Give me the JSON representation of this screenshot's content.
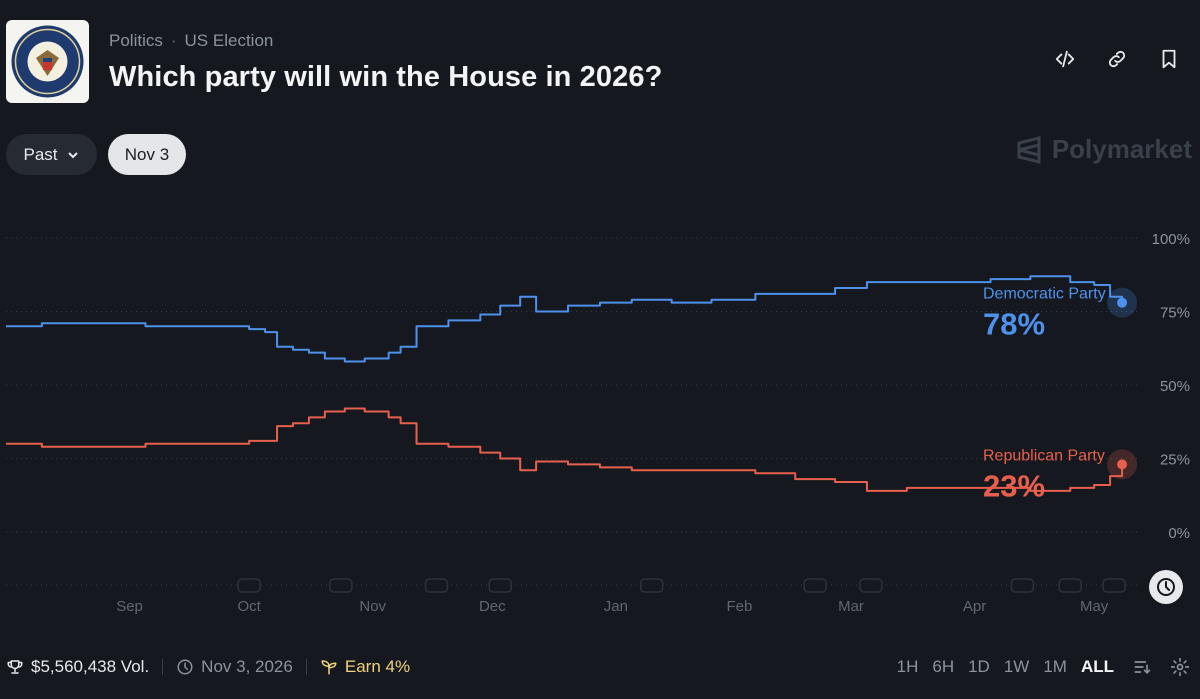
{
  "header": {
    "category": "Politics",
    "subcategory": "US Election",
    "title": "Which party will win the House in 2026?",
    "icons": [
      "embed-icon",
      "link-icon",
      "bookmark-icon"
    ]
  },
  "controls": {
    "past_label": "Past",
    "date_label": "Nov 3"
  },
  "brand": {
    "name": "Polymarket"
  },
  "chart_data": {
    "type": "line",
    "title": "",
    "xlabel": "",
    "ylabel": "",
    "ylim": [
      0,
      100
    ],
    "y_ticks": [
      0,
      25,
      50,
      75,
      100
    ],
    "y_tick_labels": [
      "0%",
      "25%",
      "50%",
      "75%",
      "100%"
    ],
    "x_tick_labels": [
      "Sep",
      "Oct",
      "Nov",
      "Dec",
      "Jan",
      "Feb",
      "Mar",
      "Apr",
      "May"
    ],
    "x_range": [
      "2025-08-01",
      "2026-05-12"
    ],
    "grid": true,
    "legend": "end-of-line labels",
    "series": [
      {
        "name": "Democratic Party",
        "color": "#4e91ec",
        "current_label": "78%",
        "x": [
          "2025-08-01",
          "2025-08-10",
          "2025-08-25",
          "2025-09-05",
          "2025-09-20",
          "2025-10-01",
          "2025-10-05",
          "2025-10-08",
          "2025-10-12",
          "2025-10-16",
          "2025-10-20",
          "2025-10-25",
          "2025-10-30",
          "2025-11-05",
          "2025-11-08",
          "2025-11-12",
          "2025-11-20",
          "2025-11-28",
          "2025-12-03",
          "2025-12-08",
          "2025-12-12",
          "2025-12-20",
          "2025-12-28",
          "2026-01-05",
          "2026-01-15",
          "2026-01-25",
          "2026-02-05",
          "2026-02-15",
          "2026-02-25",
          "2026-03-05",
          "2026-03-15",
          "2026-03-25",
          "2026-04-05",
          "2026-04-15",
          "2026-04-25",
          "2026-05-01",
          "2026-05-05",
          "2026-05-08"
        ],
        "y": [
          70,
          71,
          71,
          70,
          70,
          69,
          68,
          63,
          62,
          61,
          59,
          58,
          59,
          61,
          63,
          70,
          72,
          74,
          77,
          80,
          75,
          77,
          78,
          79,
          78,
          79,
          81,
          81,
          83,
          85,
          85,
          85,
          86,
          87,
          85,
          84,
          80,
          78
        ]
      },
      {
        "name": "Republican Party",
        "color": "#e8604d",
        "current_label": "23%",
        "x": [
          "2025-08-01",
          "2025-08-10",
          "2025-08-25",
          "2025-09-05",
          "2025-09-20",
          "2025-10-01",
          "2025-10-05",
          "2025-10-08",
          "2025-10-12",
          "2025-10-16",
          "2025-10-20",
          "2025-10-25",
          "2025-10-30",
          "2025-11-05",
          "2025-11-08",
          "2025-11-12",
          "2025-11-20",
          "2025-11-28",
          "2025-12-03",
          "2025-12-08",
          "2025-12-12",
          "2025-12-20",
          "2025-12-28",
          "2026-01-05",
          "2026-01-15",
          "2026-01-25",
          "2026-02-05",
          "2026-02-15",
          "2026-02-25",
          "2026-03-05",
          "2026-03-15",
          "2026-03-25",
          "2026-04-05",
          "2026-04-15",
          "2026-04-25",
          "2026-05-01",
          "2026-05-05",
          "2026-05-08"
        ],
        "y": [
          30,
          29,
          29,
          30,
          30,
          31,
          31,
          36,
          37,
          39,
          41,
          42,
          41,
          39,
          37,
          30,
          29,
          27,
          25,
          21,
          24,
          23,
          22,
          21,
          21,
          21,
          20,
          18,
          17,
          14,
          15,
          15,
          15,
          14,
          15,
          16,
          19,
          23
        ]
      }
    ]
  },
  "footer": {
    "volume": "$5,560,438 Vol.",
    "end_date": "Nov 3, 2026",
    "earn": "Earn 4%",
    "ranges": [
      "1H",
      "6H",
      "1D",
      "1W",
      "1M",
      "ALL"
    ],
    "active_range": "ALL"
  }
}
